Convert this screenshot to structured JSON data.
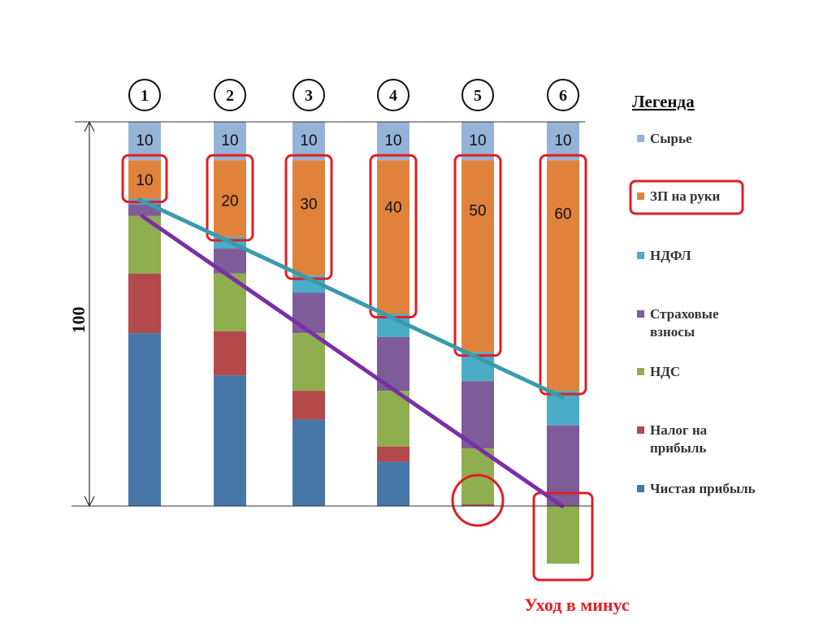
{
  "chart_data": {
    "type": "bar",
    "stacked": true,
    "categories": [
      "1",
      "2",
      "3",
      "4",
      "5",
      "6"
    ],
    "axis_label": "100",
    "ylim": [
      -15,
      100
    ],
    "series": [
      {
        "name": "Сырье",
        "color": "#95B3D7",
        "values": [
          10,
          10,
          10,
          10,
          10,
          10
        ]
      },
      {
        "name": "ЗП на руки",
        "color": "#E0823C",
        "values": [
          10,
          20,
          30,
          40,
          50,
          60
        ]
      },
      {
        "name": "НДФЛ",
        "color": "#4BACC6",
        "values": [
          1.5,
          3,
          4.5,
          6,
          7.5,
          9
        ]
      },
      {
        "name": "Страховые взносы",
        "color": "#7D5C99",
        "values": [
          3,
          6.5,
          10.5,
          14,
          17.5,
          21
        ]
      },
      {
        "name": "НДС",
        "color": "#8FAE4F",
        "values": [
          15,
          15,
          15,
          14.5,
          14.5,
          -15
        ]
      },
      {
        "name": "Налог на прибыль",
        "color": "#B3494A",
        "values": [
          15.5,
          11.5,
          7.5,
          4,
          0.5,
          0
        ]
      },
      {
        "name": "Чистая прибыль",
        "color": "#4776A9",
        "values": [
          45,
          34,
          22.5,
          11.5,
          0,
          0
        ]
      }
    ],
    "bar_labels": [
      "10",
      "10",
      "10",
      "10",
      "10",
      "10",
      "10",
      "20",
      "30",
      "40",
      "50",
      "60"
    ],
    "legend": {
      "title": "Легенда",
      "placement": "right"
    }
  },
  "annotations": {
    "negative_label": "Уход в минус",
    "highlight_color": "#E11E26",
    "trend_line_colors": [
      "#3A9AAD",
      "#7A2FA6"
    ]
  }
}
